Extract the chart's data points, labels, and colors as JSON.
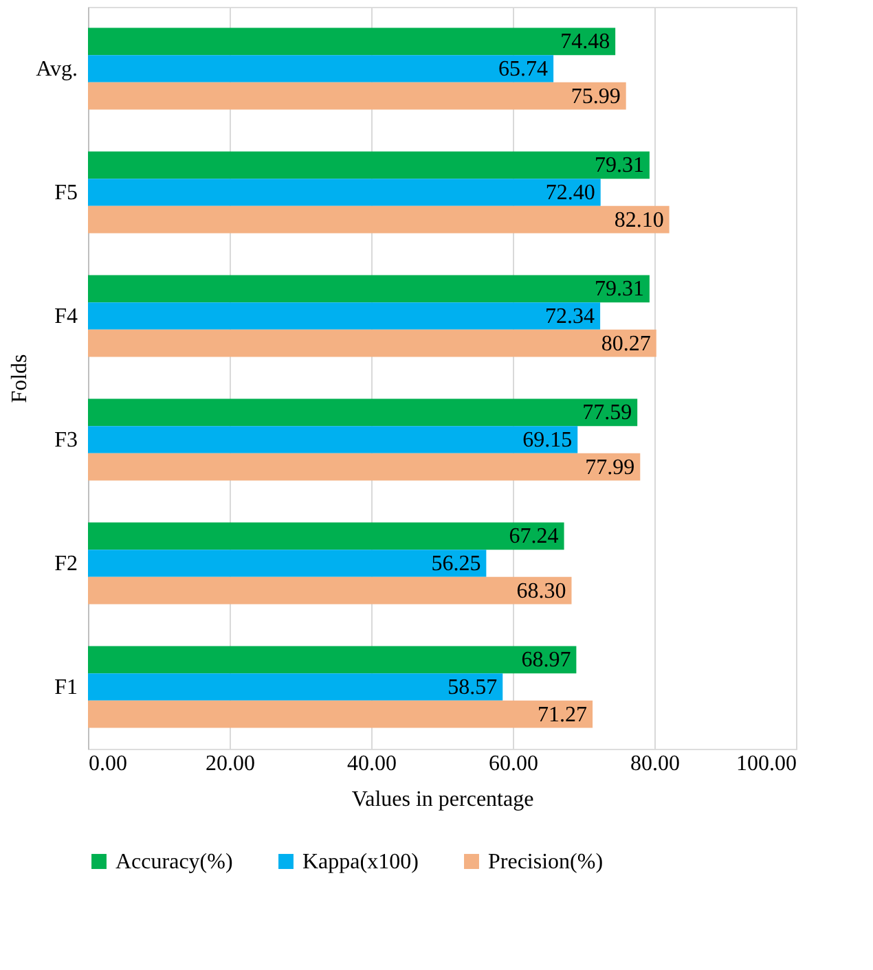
{
  "chart_data": {
    "type": "bar",
    "orientation": "horizontal",
    "xlabel": "Values in percentage",
    "ylabel": "Folds",
    "categories": [
      "Avg.",
      "F5",
      "F4",
      "F3",
      "F2",
      "F1"
    ],
    "series": [
      {
        "name": "Accuracy(%)",
        "color": "#00b050",
        "values": [
          74.48,
          79.31,
          79.31,
          77.59,
          67.24,
          68.97
        ],
        "value_labels": [
          "74.48",
          "79.31",
          "79.31",
          "77.59",
          "67.24",
          "68.97"
        ]
      },
      {
        "name": "Kappa(x100)",
        "color": "#00b0f0",
        "values": [
          65.74,
          72.4,
          72.34,
          69.15,
          56.25,
          58.57
        ],
        "value_labels": [
          "65.74",
          "72.40",
          "72.34",
          "69.15",
          "56.25",
          "58.57"
        ]
      },
      {
        "name": "Precision(%)",
        "color": "#f4b183",
        "values": [
          75.99,
          82.1,
          80.27,
          77.99,
          68.3,
          71.27
        ],
        "value_labels": [
          "75.99",
          "82.10",
          "80.27",
          "77.99",
          "68.30",
          "71.27"
        ]
      }
    ],
    "xlim": [
      0,
      100
    ],
    "xticks": [
      {
        "value": 0,
        "label": "0.00"
      },
      {
        "value": 20,
        "label": "20.00"
      },
      {
        "value": 40,
        "label": "40.00"
      },
      {
        "value": 60,
        "label": "60.00"
      },
      {
        "value": 80,
        "label": "80.00"
      },
      {
        "value": 100,
        "label": "100.00"
      }
    ],
    "grid": "x",
    "legend": "bottom"
  }
}
